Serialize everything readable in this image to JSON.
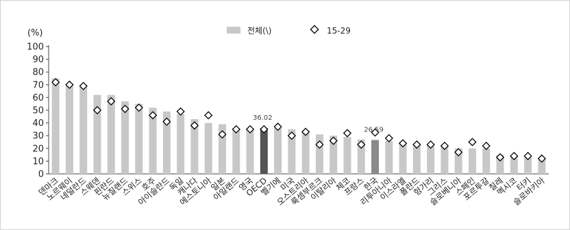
{
  "colors": {
    "bar_total": "#c8c8c8",
    "bar_highlight": "#555555",
    "bar_korea": "#8a8a8a",
    "marker_fill": "#ffffff",
    "marker_stroke": "#000000",
    "axis": "#444444"
  },
  "chart_data": {
    "type": "bar",
    "title": "",
    "xlabel": "",
    "ylabel": "(%)",
    "ylim": [
      0,
      100
    ],
    "yticks": [
      0,
      10,
      20,
      30,
      40,
      50,
      60,
      70,
      80,
      90,
      100
    ],
    "grid": false,
    "legend_position": "top-center",
    "categories": [
      "덴마크",
      "노르웨이",
      "네덜란드",
      "스웨덴",
      "핀란드",
      "뉴질랜드",
      "스위스",
      "호주",
      "아이슬란드",
      "독일",
      "캐나다",
      "에스토니아",
      "일본",
      "아일랜드",
      "영국",
      "OECD",
      "벨기에",
      "미국",
      "오스트리아",
      "룩셈부르크",
      "이탈리아",
      "체코",
      "프랑스",
      "한국",
      "리투아니아",
      "이스라엘",
      "폴란드",
      "헝가리",
      "그리스",
      "슬로베니아",
      "스페인",
      "포르투갈",
      "칠레",
      "멕시코",
      "터키",
      "슬로바키아"
    ],
    "series": [
      {
        "name": "전체(\\)",
        "type": "bar",
        "values": [
          75,
          71,
          70,
          62,
          62,
          57,
          55,
          52,
          49,
          47,
          43,
          40,
          39,
          36,
          36,
          36.02,
          36,
          35,
          34,
          31,
          30,
          29,
          27,
          26.59,
          26,
          25,
          24,
          23,
          22,
          20,
          20,
          20,
          15,
          14,
          13,
          12
        ]
      },
      {
        "name": "15-29",
        "type": "marker",
        "values": [
          72,
          70,
          69,
          50,
          57,
          51,
          52,
          46,
          41,
          49,
          38,
          46,
          31,
          35,
          35,
          35,
          37,
          30,
          33,
          23,
          26,
          32,
          23,
          32.5,
          28,
          24,
          23,
          23,
          22,
          17,
          25,
          22,
          13,
          14,
          14,
          12
        ]
      }
    ],
    "highlights": [
      {
        "category": "OECD",
        "color_key": "bar_highlight"
      },
      {
        "category": "한국",
        "color_key": "bar_korea"
      }
    ],
    "annotations": [
      {
        "category": "OECD",
        "text": "36.02"
      },
      {
        "category": "한국",
        "text": "26.59"
      }
    ]
  }
}
